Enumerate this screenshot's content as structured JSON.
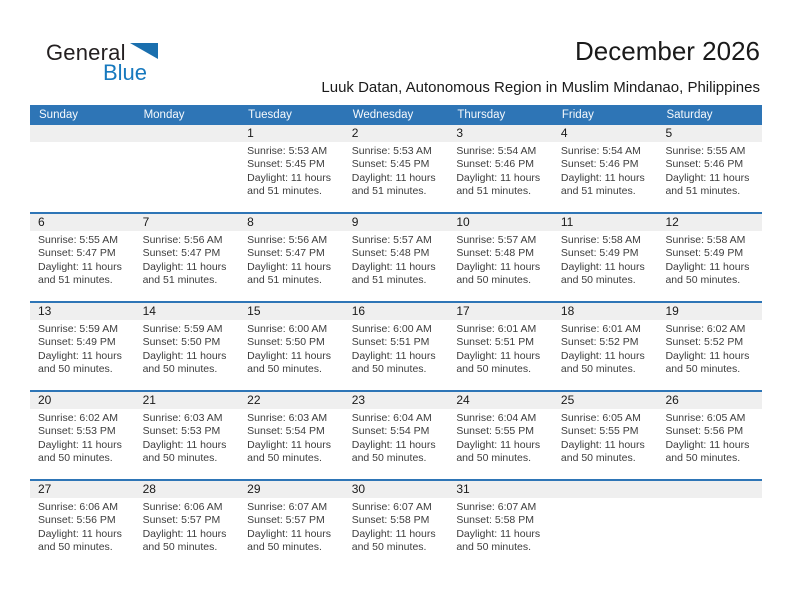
{
  "logo": {
    "line1": "General",
    "line2": "Blue",
    "triangle_color": "#1a6fae",
    "blue_color": "#1779be"
  },
  "header": {
    "title": "December 2026",
    "subtitle": "Luuk Datan, Autonomous Region in Muslim Mindanao, Philippines"
  },
  "colors": {
    "weekday_bar": "#2e75b6",
    "week_separator": "#2e75b6",
    "day_number_band": "#efefef",
    "body_text": "#3d3d3d"
  },
  "calendar": {
    "weekdays": [
      "Sunday",
      "Monday",
      "Tuesday",
      "Wednesday",
      "Thursday",
      "Friday",
      "Saturday"
    ],
    "weeks": [
      [
        {
          "day": ""
        },
        {
          "day": ""
        },
        {
          "day": "1",
          "sunrise": "Sunrise: 5:53 AM",
          "sunset": "Sunset: 5:45 PM",
          "daylight": "Daylight: 11 hours and 51 minutes."
        },
        {
          "day": "2",
          "sunrise": "Sunrise: 5:53 AM",
          "sunset": "Sunset: 5:45 PM",
          "daylight": "Daylight: 11 hours and 51 minutes."
        },
        {
          "day": "3",
          "sunrise": "Sunrise: 5:54 AM",
          "sunset": "Sunset: 5:46 PM",
          "daylight": "Daylight: 11 hours and 51 minutes."
        },
        {
          "day": "4",
          "sunrise": "Sunrise: 5:54 AM",
          "sunset": "Sunset: 5:46 PM",
          "daylight": "Daylight: 11 hours and 51 minutes."
        },
        {
          "day": "5",
          "sunrise": "Sunrise: 5:55 AM",
          "sunset": "Sunset: 5:46 PM",
          "daylight": "Daylight: 11 hours and 51 minutes."
        }
      ],
      [
        {
          "day": "6",
          "sunrise": "Sunrise: 5:55 AM",
          "sunset": "Sunset: 5:47 PM",
          "daylight": "Daylight: 11 hours and 51 minutes."
        },
        {
          "day": "7",
          "sunrise": "Sunrise: 5:56 AM",
          "sunset": "Sunset: 5:47 PM",
          "daylight": "Daylight: 11 hours and 51 minutes."
        },
        {
          "day": "8",
          "sunrise": "Sunrise: 5:56 AM",
          "sunset": "Sunset: 5:47 PM",
          "daylight": "Daylight: 11 hours and 51 minutes."
        },
        {
          "day": "9",
          "sunrise": "Sunrise: 5:57 AM",
          "sunset": "Sunset: 5:48 PM",
          "daylight": "Daylight: 11 hours and 51 minutes."
        },
        {
          "day": "10",
          "sunrise": "Sunrise: 5:57 AM",
          "sunset": "Sunset: 5:48 PM",
          "daylight": "Daylight: 11 hours and 50 minutes."
        },
        {
          "day": "11",
          "sunrise": "Sunrise: 5:58 AM",
          "sunset": "Sunset: 5:49 PM",
          "daylight": "Daylight: 11 hours and 50 minutes."
        },
        {
          "day": "12",
          "sunrise": "Sunrise: 5:58 AM",
          "sunset": "Sunset: 5:49 PM",
          "daylight": "Daylight: 11 hours and 50 minutes."
        }
      ],
      [
        {
          "day": "13",
          "sunrise": "Sunrise: 5:59 AM",
          "sunset": "Sunset: 5:49 PM",
          "daylight": "Daylight: 11 hours and 50 minutes."
        },
        {
          "day": "14",
          "sunrise": "Sunrise: 5:59 AM",
          "sunset": "Sunset: 5:50 PM",
          "daylight": "Daylight: 11 hours and 50 minutes."
        },
        {
          "day": "15",
          "sunrise": "Sunrise: 6:00 AM",
          "sunset": "Sunset: 5:50 PM",
          "daylight": "Daylight: 11 hours and 50 minutes."
        },
        {
          "day": "16",
          "sunrise": "Sunrise: 6:00 AM",
          "sunset": "Sunset: 5:51 PM",
          "daylight": "Daylight: 11 hours and 50 minutes."
        },
        {
          "day": "17",
          "sunrise": "Sunrise: 6:01 AM",
          "sunset": "Sunset: 5:51 PM",
          "daylight": "Daylight: 11 hours and 50 minutes."
        },
        {
          "day": "18",
          "sunrise": "Sunrise: 6:01 AM",
          "sunset": "Sunset: 5:52 PM",
          "daylight": "Daylight: 11 hours and 50 minutes."
        },
        {
          "day": "19",
          "sunrise": "Sunrise: 6:02 AM",
          "sunset": "Sunset: 5:52 PM",
          "daylight": "Daylight: 11 hours and 50 minutes."
        }
      ],
      [
        {
          "day": "20",
          "sunrise": "Sunrise: 6:02 AM",
          "sunset": "Sunset: 5:53 PM",
          "daylight": "Daylight: 11 hours and 50 minutes."
        },
        {
          "day": "21",
          "sunrise": "Sunrise: 6:03 AM",
          "sunset": "Sunset: 5:53 PM",
          "daylight": "Daylight: 11 hours and 50 minutes."
        },
        {
          "day": "22",
          "sunrise": "Sunrise: 6:03 AM",
          "sunset": "Sunset: 5:54 PM",
          "daylight": "Daylight: 11 hours and 50 minutes."
        },
        {
          "day": "23",
          "sunrise": "Sunrise: 6:04 AM",
          "sunset": "Sunset: 5:54 PM",
          "daylight": "Daylight: 11 hours and 50 minutes."
        },
        {
          "day": "24",
          "sunrise": "Sunrise: 6:04 AM",
          "sunset": "Sunset: 5:55 PM",
          "daylight": "Daylight: 11 hours and 50 minutes."
        },
        {
          "day": "25",
          "sunrise": "Sunrise: 6:05 AM",
          "sunset": "Sunset: 5:55 PM",
          "daylight": "Daylight: 11 hours and 50 minutes."
        },
        {
          "day": "26",
          "sunrise": "Sunrise: 6:05 AM",
          "sunset": "Sunset: 5:56 PM",
          "daylight": "Daylight: 11 hours and 50 minutes."
        }
      ],
      [
        {
          "day": "27",
          "sunrise": "Sunrise: 6:06 AM",
          "sunset": "Sunset: 5:56 PM",
          "daylight": "Daylight: 11 hours and 50 minutes."
        },
        {
          "day": "28",
          "sunrise": "Sunrise: 6:06 AM",
          "sunset": "Sunset: 5:57 PM",
          "daylight": "Daylight: 11 hours and 50 minutes."
        },
        {
          "day": "29",
          "sunrise": "Sunrise: 6:07 AM",
          "sunset": "Sunset: 5:57 PM",
          "daylight": "Daylight: 11 hours and 50 minutes."
        },
        {
          "day": "30",
          "sunrise": "Sunrise: 6:07 AM",
          "sunset": "Sunset: 5:58 PM",
          "daylight": "Daylight: 11 hours and 50 minutes."
        },
        {
          "day": "31",
          "sunrise": "Sunrise: 6:07 AM",
          "sunset": "Sunset: 5:58 PM",
          "daylight": "Daylight: 11 hours and 50 minutes."
        },
        {
          "day": ""
        },
        {
          "day": ""
        }
      ]
    ]
  }
}
